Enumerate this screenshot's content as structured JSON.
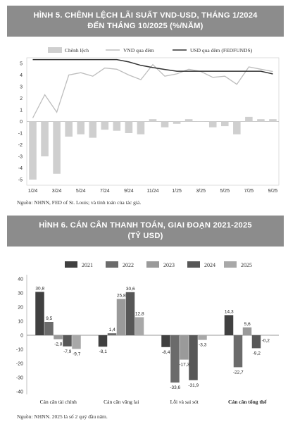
{
  "figure1": {
    "title_line1": "HÌNH 5. CHÊNH LỆCH LÃI SUẤT VND-USD, THÁNG 1/2024",
    "title_line2": "ĐẾN THÁNG 10/2025 (%/NĂM)",
    "source": "Nguồn: NHNN, FED of St. Louis; và tính toán của tác giả."
  },
  "figure2": {
    "title_line1": "HÌNH 6. CÁN CÂN THANH TOÁN, GIAI ĐOẠN 2021-2025",
    "title_line2": "(TỶ USD)",
    "source": "Nguồn: NHNN. 2025 là số 2 quý đầu năm."
  },
  "colors": {
    "header_bg": "#8c8c8c",
    "diff_bar": "#cfcfcf",
    "vnd_line": "#bdbdbd",
    "usd_line": "#333333",
    "y2021": "#404040",
    "y2022": "#6b6b6b",
    "y2023": "#9a9a9a",
    "y2024": "#575757",
    "y2025": "#a8a8a8"
  },
  "chart_data": [
    {
      "type": "bar+line",
      "legend": [
        "Chênh lệch",
        "VND qua đêm",
        "USD qua đêm (FEDFUNDS)"
      ],
      "legend_position": "top",
      "x": [
        "1/24",
        "2/24",
        "3/24",
        "4/24",
        "5/24",
        "6/24",
        "7/24",
        "8/24",
        "9/24",
        "10/24",
        "11/24",
        "12/24",
        "1/25",
        "2/25",
        "3/25",
        "4/25",
        "5/25",
        "6/25",
        "7/25",
        "8/25",
        "9/25"
      ],
      "xtick_labels": [
        "1/24",
        "3/24",
        "5/24",
        "7/24",
        "9/24",
        "11/24",
        "1/25",
        "3/25",
        "5/25",
        "7/25",
        "9/25"
      ],
      "ylim": [
        -5,
        5
      ],
      "yticks": [
        5,
        4,
        3,
        2,
        1,
        0,
        -1,
        -2,
        -3,
        -4,
        -5
      ],
      "series": [
        {
          "name": "Chênh lệch",
          "type": "bar",
          "values": [
            -5.0,
            -3.0,
            -4.5,
            -1.3,
            -1.1,
            -1.4,
            -0.7,
            -0.8,
            -1.0,
            -1.1,
            0.2,
            -0.5,
            -0.2,
            0.2,
            0.0,
            -0.5,
            -0.4,
            -1.1,
            0.4,
            0.2,
            0.2
          ]
        },
        {
          "name": "VND qua đêm",
          "type": "line",
          "values": [
            0.3,
            2.3,
            0.8,
            4.0,
            4.2,
            3.9,
            4.6,
            4.5,
            4.0,
            3.6,
            4.9,
            3.9,
            4.1,
            4.5,
            4.3,
            3.8,
            3.9,
            3.2,
            4.7,
            4.5,
            4.3
          ]
        },
        {
          "name": "USD qua đêm (FEDFUNDS)",
          "type": "line",
          "values": [
            5.33,
            5.33,
            5.33,
            5.33,
            5.33,
            5.33,
            5.33,
            5.33,
            5.13,
            4.83,
            4.64,
            4.48,
            4.33,
            4.33,
            4.33,
            4.33,
            4.33,
            4.33,
            4.33,
            4.33,
            4.09
          ]
        }
      ],
      "grid": false
    },
    {
      "type": "bar",
      "categories": [
        "Cán cân tài chính",
        "Cán cân vãng lai",
        "Lỗi và sai sót",
        "Cán cân tổng thể"
      ],
      "legend_position": "top",
      "ylim": [
        -40,
        40
      ],
      "yticks": [
        40,
        30,
        20,
        10,
        0,
        -10,
        -20,
        -30,
        -40
      ],
      "series": [
        {
          "name": "2021",
          "values": [
            30.8,
            -8.1,
            -8.4,
            14.3
          ],
          "labels": [
            "30,8",
            "-8,1",
            "-8,4",
            "14,3"
          ]
        },
        {
          "name": "2022",
          "values": [
            9.5,
            1.4,
            -33.6,
            -22.7
          ],
          "labels": [
            "9,5",
            "1,4",
            "-33,6",
            "-22,7"
          ]
        },
        {
          "name": "2023",
          "values": [
            -2.8,
            25.8,
            -17.3,
            5.6
          ],
          "labels": [
            "-2,8",
            "25,8",
            "-17,3",
            "5,6"
          ]
        },
        {
          "name": "2024",
          "values": [
            -7.9,
            30.6,
            -31.9,
            -9.2
          ],
          "labels": [
            "-7,9",
            "30,6",
            "-31,9",
            "-9,2"
          ]
        },
        {
          "name": "2025",
          "values": [
            -9.7,
            12.8,
            -3.3,
            -0.2
          ],
          "labels": [
            "-9,7",
            "12,8",
            "-3,3",
            "-0,2"
          ]
        }
      ],
      "grid": false
    }
  ]
}
